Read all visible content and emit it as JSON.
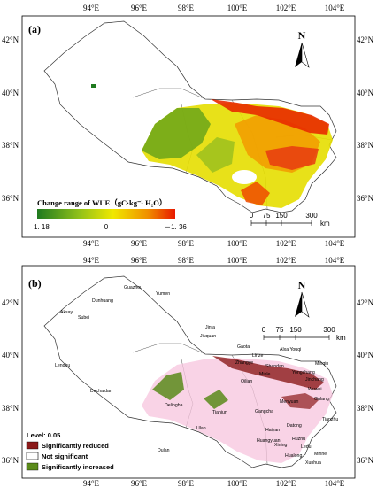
{
  "colors": {
    "green": "#1f7a1f",
    "yellow": "#e8e000",
    "orange": "#f08a00",
    "red": "#e82000",
    "pink": "#f4b6d6",
    "darkred": "#8b1a1a",
    "olive": "#5a8a1a"
  },
  "map_a": {
    "label": "(a)",
    "x_ticks": [
      "94°E",
      "96°E",
      "98°E",
      "100°E",
      "102°E",
      "104°E"
    ],
    "y_ticks": [
      "42°N",
      "40°N",
      "38°N",
      "36°N"
    ],
    "north": "N",
    "scale": {
      "ticks": [
        "0",
        "75",
        "150",
        "300"
      ],
      "unit": "km"
    },
    "legend": {
      "title": "Change range of WUE（gC·kg⁻¹ H₂O）",
      "min": "1. 18",
      "mid": "0",
      "max": "－1. 36"
    }
  },
  "map_b": {
    "label": "(b)",
    "x_ticks": [
      "94°E",
      "96°E",
      "98°E",
      "100°E",
      "102°E",
      "104°E"
    ],
    "y_ticks": [
      "42°N",
      "40°N",
      "38°N",
      "36°N"
    ],
    "north": "N",
    "scale": {
      "ticks": [
        "0",
        "75",
        "150",
        "300"
      ],
      "unit": "km"
    },
    "legend": {
      "title": "Level: 0.05",
      "items": [
        "Significantly reduced",
        "Not significant",
        "Significantly increased"
      ]
    },
    "cities": [
      "Guazhou",
      "Yumen",
      "Dunhuang",
      "Aksay",
      "Subei",
      "Jinta",
      "Jiuquan",
      "Gaotai",
      "Linze",
      "Shandan",
      "Alxa Youqi",
      "Zhangye",
      "Minle",
      "Yongchang",
      "Minqin",
      "Jinchang",
      "Wuwei",
      "Gulang",
      "Lenghu",
      "Qilian",
      "Dachaidan",
      "Delingha",
      "Tianjun",
      "Menyuan",
      "Gangcha",
      "Haiyan",
      "Datong",
      "Tianzhu",
      "Huangyuan",
      "Huzhu",
      "Xining",
      "Ledu",
      "Minhe",
      "Ulan",
      "Dulan",
      "Hualong",
      "Xunhua"
    ]
  }
}
